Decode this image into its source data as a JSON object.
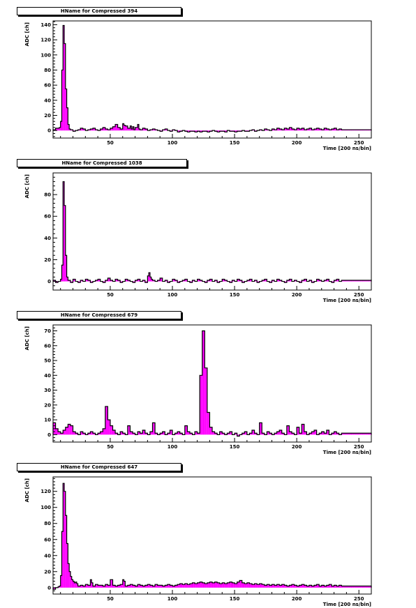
{
  "chart_data": [
    {
      "type": "bar",
      "title": "HName for Compressed 394",
      "xlabel": "Time [200 ns/bin]",
      "ylabel": "ADC [ch]",
      "xlim": [
        4,
        260
      ],
      "ylim": [
        -10,
        145
      ],
      "xticks": [
        50,
        100,
        150,
        200,
        250
      ],
      "yticks": [
        0,
        20,
        40,
        60,
        80,
        100,
        120,
        140
      ],
      "bar_color": "#ff00ff",
      "background": [
        1,
        3,
        3,
        2,
        1,
        0,
        2,
        1,
        -1,
        0,
        1,
        3,
        2,
        0,
        1,
        2,
        3,
        1,
        0,
        2,
        4,
        2,
        1,
        3,
        5,
        8,
        4,
        2,
        3,
        6,
        3,
        2,
        1,
        4,
        2,
        1,
        3,
        2,
        0,
        1,
        2,
        1,
        0,
        -1,
        1,
        2,
        0,
        -1,
        1,
        0,
        -2,
        -1,
        0,
        -1,
        -2,
        -1,
        -1,
        -2,
        -1,
        -2,
        -1,
        -1,
        -2,
        -1,
        0,
        -1,
        -2,
        -1,
        -1,
        -2,
        0,
        -1,
        -1,
        -2,
        -1,
        -1,
        0,
        -1,
        -1,
        0,
        1,
        -1,
        0,
        1,
        0,
        2,
        1,
        0,
        2,
        1,
        3,
        2,
        1,
        3,
        2,
        4,
        2,
        1,
        3,
        2,
        3,
        1,
        2,
        3,
        1,
        2,
        3,
        2,
        1,
        3,
        2,
        1,
        2,
        3,
        1,
        2,
        1
      ],
      "peaks": [
        [
          9,
          4
        ],
        [
          10,
          12
        ],
        [
          11,
          80
        ],
        [
          12,
          139
        ],
        [
          13,
          115
        ],
        [
          14,
          55
        ],
        [
          15,
          30
        ],
        [
          16,
          8
        ],
        [
          60,
          9
        ],
        [
          61,
          7
        ],
        [
          66,
          6
        ],
        [
          68,
          5
        ],
        [
          72,
          8
        ]
      ]
    },
    {
      "type": "bar",
      "title": "HName for Compressed 1038",
      "xlabel": "Time [200 ns/bin]",
      "ylabel": "ADC [ch]",
      "xlim": [
        4,
        260
      ],
      "ylim": [
        -8,
        100
      ],
      "xticks": [
        50,
        100,
        150,
        200,
        250
      ],
      "yticks": [
        0,
        20,
        40,
        60,
        80
      ],
      "bar_color": "#ff00ff",
      "background": [
        1,
        -1,
        0,
        2,
        -2,
        0,
        1,
        -1,
        2,
        0,
        -1,
        1,
        0,
        2,
        1,
        -1,
        0,
        1,
        2,
        0,
        -1,
        1,
        3,
        1,
        0,
        2,
        1,
        -1,
        0,
        2,
        1,
        0,
        -1,
        1,
        2,
        0,
        1,
        -1,
        0,
        2,
        1,
        0,
        1,
        3,
        0,
        1,
        -1,
        0,
        2,
        1,
        -1,
        0,
        1,
        2,
        0,
        -1,
        1,
        0,
        2,
        1,
        0,
        -1,
        1,
        2,
        0,
        1,
        -1,
        0,
        2,
        1,
        0,
        -1,
        1,
        0,
        2,
        1,
        -1,
        0,
        1,
        2,
        0,
        1,
        -1,
        0,
        1,
        2,
        0,
        -1,
        1,
        0,
        2,
        1,
        0,
        -1,
        1,
        2,
        0,
        1,
        0,
        -1,
        1,
        2,
        0,
        1,
        -1,
        0,
        2,
        1,
        0,
        1,
        2,
        0,
        -1,
        1,
        2,
        0,
        1
      ],
      "peaks": [
        [
          10,
          2
        ],
        [
          11,
          15
        ],
        [
          12,
          92
        ],
        [
          13,
          70
        ],
        [
          14,
          24
        ],
        [
          15,
          4
        ],
        [
          80,
          5
        ],
        [
          81,
          8
        ],
        [
          82,
          4
        ]
      ]
    },
    {
      "type": "bar",
      "title": "HName for Compressed 679",
      "xlabel": "Time [200 ns/bin]",
      "ylabel": "ADC [ch]",
      "xlim": [
        4,
        260
      ],
      "ylim": [
        -5,
        74
      ],
      "xticks": [
        50,
        100,
        150,
        200,
        250
      ],
      "yticks": [
        0,
        10,
        20,
        30,
        40,
        50,
        60,
        70
      ],
      "bar_color": "#ff00ff",
      "background": [
        8,
        4,
        2,
        1,
        3,
        5,
        7,
        6,
        2,
        1,
        0,
        2,
        1,
        0,
        1,
        2,
        1,
        0,
        1,
        2,
        4,
        19,
        10,
        6,
        3,
        1,
        0,
        2,
        1,
        0,
        6,
        2,
        1,
        0,
        2,
        1,
        3,
        1,
        0,
        2,
        8,
        1,
        0,
        1,
        2,
        0,
        1,
        3,
        0,
        1,
        2,
        1,
        0,
        6,
        2,
        1,
        0,
        2,
        1,
        40,
        70,
        45,
        15,
        5,
        2,
        1,
        0,
        2,
        1,
        0,
        1,
        2,
        0,
        1,
        -1,
        0,
        1,
        2,
        0,
        1,
        3,
        1,
        0,
        8,
        1,
        0,
        2,
        1,
        0,
        1,
        2,
        3,
        1,
        0,
        6,
        2,
        1,
        0,
        5,
        1,
        7,
        2,
        0,
        1,
        2,
        3,
        0,
        1,
        2,
        1,
        3,
        0,
        1,
        2,
        1,
        0,
        1
      ],
      "peaks": []
    },
    {
      "type": "bar",
      "title": "HName for Compressed 647",
      "xlabel": "Time [200 ns/bin]",
      "ylabel": "ADC [ch]",
      "xlim": [
        4,
        260
      ],
      "ylim": [
        -8,
        138
      ],
      "xticks": [
        50,
        100,
        150,
        200,
        250
      ],
      "yticks": [
        0,
        20,
        40,
        60,
        80,
        100,
        120
      ],
      "bar_color": "#ff00ff",
      "background": [
        -2,
        0,
        1,
        2,
        3,
        4,
        6,
        10,
        4,
        3,
        2,
        3,
        2,
        4,
        3,
        2,
        2,
        4,
        3,
        3,
        2,
        4,
        3,
        10,
        3,
        2,
        3,
        4,
        3,
        2,
        3,
        4,
        3,
        2,
        4,
        3,
        2,
        3,
        4,
        3,
        2,
        4,
        3,
        3,
        2,
        3,
        4,
        3,
        2,
        3,
        4,
        5,
        4,
        5,
        4,
        5,
        6,
        5,
        6,
        7,
        6,
        5,
        6,
        7,
        6,
        7,
        6,
        5,
        6,
        5,
        6,
        7,
        6,
        5,
        7,
        9,
        6,
        5,
        6,
        5,
        4,
        5,
        4,
        5,
        4,
        3,
        4,
        3,
        4,
        3,
        4,
        3,
        4,
        3,
        2,
        3,
        4,
        3,
        2,
        3,
        4,
        3,
        2,
        3,
        2,
        3,
        4,
        2,
        3,
        2,
        3,
        4,
        2,
        3,
        2,
        3,
        2
      ],
      "peaks": [
        [
          9,
          2
        ],
        [
          10,
          15
        ],
        [
          11,
          70
        ],
        [
          12,
          130
        ],
        [
          13,
          120
        ],
        [
          14,
          90
        ],
        [
          15,
          55
        ],
        [
          16,
          30
        ],
        [
          17,
          20
        ],
        [
          18,
          14
        ],
        [
          19,
          10
        ],
        [
          20,
          8
        ],
        [
          21,
          6
        ],
        [
          22,
          7
        ],
        [
          23,
          5
        ],
        [
          34,
          10
        ],
        [
          35,
          6
        ],
        [
          60,
          10
        ],
        [
          61,
          8
        ]
      ]
    }
  ]
}
